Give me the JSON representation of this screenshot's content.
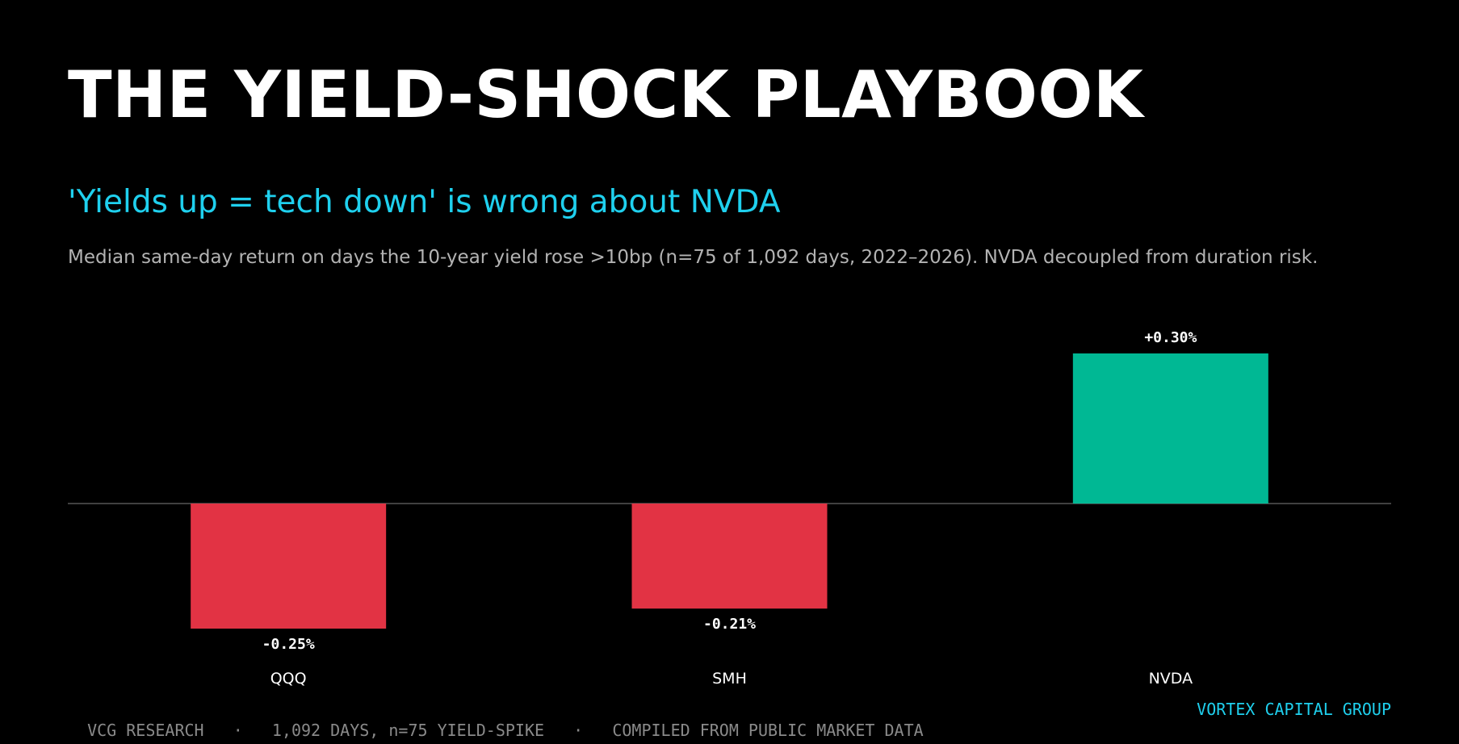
{
  "header": {
    "title": "THE YIELD-SHOCK PLAYBOOK",
    "subtitle": "'Yields up = tech down' is wrong about NVDA",
    "description": "Median same-day return on days the 10-year yield rose >10bp (n=75 of 1,092 days, 2022–2026). NVDA decoupled from duration risk."
  },
  "chart_data": {
    "type": "bar",
    "categories": [
      "QQQ",
      "SMH",
      "NVDA"
    ],
    "values": [
      -0.25,
      -0.21,
      0.3
    ],
    "value_labels": [
      "-0.25%",
      "-0.21%",
      "+0.30%"
    ],
    "unit": "%",
    "xlabel": "",
    "ylabel": "",
    "ylim": [
      -0.25,
      0.3
    ],
    "grid": false,
    "zero_line": true,
    "colors": {
      "positive": "#00b894",
      "negative": "#e23344",
      "zero_line": "#555555",
      "label": "#ffffff"
    }
  },
  "footer": {
    "left_items": [
      "VCG RESEARCH",
      "1,092 DAYS, n=75 YIELD-SPIKE",
      "COMPILED FROM PUBLIC MARKET DATA"
    ],
    "separator": "·",
    "brand": "VORTEX CAPITAL GROUP"
  },
  "colors": {
    "background": "#000000",
    "accent": "#1fd0ee"
  }
}
